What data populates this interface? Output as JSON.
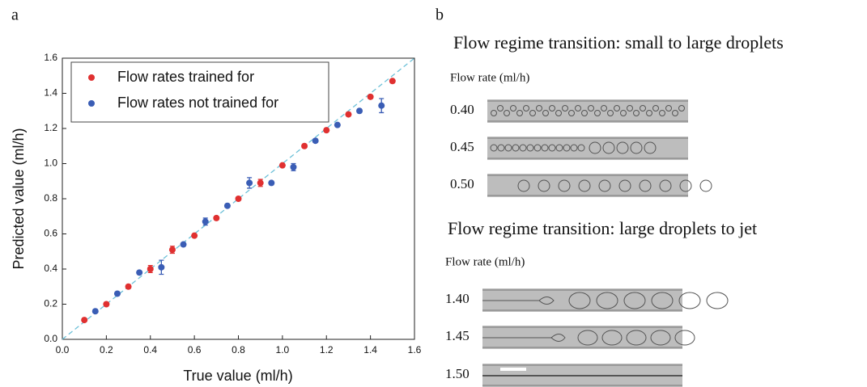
{
  "chart_data": {
    "type": "scatter",
    "panel_label": "a",
    "x_label": "True value (ml/h)",
    "y_label": "Predicted value (ml/h)",
    "xlim": [
      0,
      1.6
    ],
    "ylim": [
      0,
      1.6
    ],
    "xticks": [
      {
        "value": 0,
        "label": "0.0"
      },
      0.2,
      0.4,
      0.6,
      0.8,
      {
        "value": 1,
        "label": "1.0"
      },
      1.2,
      1.4,
      1.6
    ],
    "yticks": [
      {
        "value": 0,
        "label": "0.0"
      },
      0.2,
      0.4,
      0.6,
      0.8,
      {
        "value": 1,
        "label": "1.0"
      },
      1.2,
      1.4,
      1.6
    ],
    "legend": "upper left",
    "series": [
      {
        "name": "Flow rates trained for",
        "color": "#e03030",
        "x": [
          0.1,
          0.2,
          0.3,
          0.4,
          0.5,
          0.6,
          0.7,
          0.8,
          0.9,
          1.0,
          1.1,
          1.2,
          1.3,
          1.4,
          1.5
        ],
        "values": [
          0.11,
          0.2,
          0.3,
          0.4,
          0.51,
          0.59,
          0.69,
          0.8,
          0.89,
          0.99,
          1.1,
          1.19,
          1.28,
          1.38,
          1.47
        ],
        "errors": [
          0.01,
          0.01,
          0.01,
          0.02,
          0.02,
          0.01,
          0.01,
          0.01,
          0.02,
          0.01,
          0.01,
          0.01,
          0.01,
          0.01,
          0.01
        ]
      },
      {
        "name": "Flow rates not trained for",
        "color": "#3a5db5",
        "x": [
          0.15,
          0.25,
          0.35,
          0.45,
          0.55,
          0.65,
          0.75,
          0.85,
          0.95,
          1.05,
          1.15,
          1.25,
          1.35,
          1.45
        ],
        "values": [
          0.16,
          0.26,
          0.38,
          0.41,
          0.54,
          0.67,
          0.76,
          0.89,
          0.89,
          0.98,
          1.13,
          1.22,
          1.3,
          1.33
        ],
        "errors": [
          0.01,
          0.01,
          0.01,
          0.04,
          0.01,
          0.02,
          0.01,
          0.03,
          0.01,
          0.02,
          0.01,
          0.01,
          0.01,
          0.04
        ]
      }
    ]
  },
  "panel_b": {
    "label": "b",
    "sections": [
      {
        "title": "Flow regime transition: small to large droplets",
        "subtitle": "Flow rate (ml/h)",
        "rows": [
          "0.40",
          "0.45",
          "0.50"
        ]
      },
      {
        "title": "Flow regime transition: large droplets to jet",
        "subtitle": "Flow rate (ml/h)",
        "rows": [
          "1.40",
          "1.45",
          "1.50"
        ]
      }
    ]
  }
}
